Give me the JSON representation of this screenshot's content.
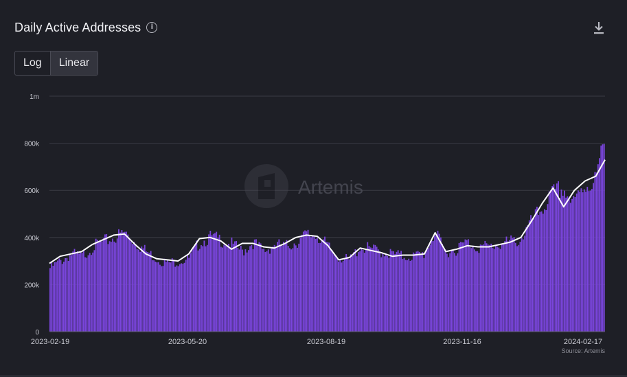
{
  "header": {
    "title": "Daily Active Addresses",
    "info_icon": "info-icon",
    "download_icon": "download-icon"
  },
  "scale_toggle": {
    "options": [
      "Log",
      "Linear"
    ],
    "selected": "Linear"
  },
  "watermark": {
    "text": "Artemis",
    "icon": "artemis-logo-icon"
  },
  "source": "Source: Artemis",
  "colors": {
    "background": "#1e1f26",
    "bar": "#7a45dc",
    "moving_average": "#ffffff",
    "grid": "#3a3b44",
    "axis_text": "#c9cad2"
  },
  "chart_data": {
    "type": "bar",
    "title": "Daily Active Addresses",
    "xlabel": "",
    "ylabel": "",
    "x_range": [
      "2023-02-19",
      "2024-02-17"
    ],
    "x_tick_labels": [
      "2023-02-19",
      "2023-05-20",
      "2023-08-19",
      "2023-11-16",
      "2024-02-17"
    ],
    "y_tick_labels": [
      "0",
      "200k",
      "400k",
      "600k",
      "800k",
      "1m"
    ],
    "ylim": [
      0,
      1000000
    ],
    "grid": true,
    "series": [
      {
        "type": "bar",
        "frequency": "daily",
        "note": "approximate weekly-sampled values read from chart",
        "dates": [
          "2023-02-19",
          "2023-02-26",
          "2023-03-05",
          "2023-03-12",
          "2023-03-19",
          "2023-03-26",
          "2023-04-02",
          "2023-04-09",
          "2023-04-16",
          "2023-04-23",
          "2023-04-30",
          "2023-05-07",
          "2023-05-14",
          "2023-05-21",
          "2023-05-28",
          "2023-06-04",
          "2023-06-11",
          "2023-06-18",
          "2023-06-25",
          "2023-07-02",
          "2023-07-09",
          "2023-07-16",
          "2023-07-23",
          "2023-07-30",
          "2023-08-06",
          "2023-08-13",
          "2023-08-20",
          "2023-08-27",
          "2023-09-03",
          "2023-09-10",
          "2023-09-17",
          "2023-09-24",
          "2023-10-01",
          "2023-10-08",
          "2023-10-15",
          "2023-10-22",
          "2023-10-29",
          "2023-11-05",
          "2023-11-12",
          "2023-11-19",
          "2023-11-26",
          "2023-12-03",
          "2023-12-10",
          "2023-12-17",
          "2023-12-24",
          "2023-12-31",
          "2024-01-07",
          "2024-01-14",
          "2024-01-21",
          "2024-01-28",
          "2024-02-04",
          "2024-02-11",
          "2024-02-17"
        ],
        "values": [
          270000,
          300000,
          330000,
          320000,
          360000,
          380000,
          400000,
          420000,
          380000,
          340000,
          310000,
          290000,
          300000,
          310000,
          380000,
          400000,
          390000,
          370000,
          340000,
          380000,
          340000,
          370000,
          360000,
          380000,
          410000,
          410000,
          360000,
          320000,
          300000,
          360000,
          350000,
          340000,
          330000,
          320000,
          320000,
          330000,
          420000,
          340000,
          350000,
          380000,
          360000,
          360000,
          370000,
          380000,
          390000,
          460000,
          520000,
          580000,
          610000,
          540000,
          620000,
          640000,
          790000
        ]
      },
      {
        "type": "line",
        "note": "moving average",
        "dates": [
          "2023-02-19",
          "2023-02-26",
          "2023-03-05",
          "2023-03-12",
          "2023-03-19",
          "2023-03-26",
          "2023-04-02",
          "2023-04-09",
          "2023-04-16",
          "2023-04-23",
          "2023-04-30",
          "2023-05-07",
          "2023-05-14",
          "2023-05-21",
          "2023-05-28",
          "2023-06-04",
          "2023-06-11",
          "2023-06-18",
          "2023-06-25",
          "2023-07-02",
          "2023-07-09",
          "2023-07-16",
          "2023-07-23",
          "2023-07-30",
          "2023-08-06",
          "2023-08-13",
          "2023-08-20",
          "2023-08-27",
          "2023-09-03",
          "2023-09-10",
          "2023-09-17",
          "2023-09-24",
          "2023-10-01",
          "2023-10-08",
          "2023-10-15",
          "2023-10-22",
          "2023-10-29",
          "2023-11-05",
          "2023-11-12",
          "2023-11-19",
          "2023-11-26",
          "2023-12-03",
          "2023-12-10",
          "2023-12-17",
          "2023-12-24",
          "2023-12-31",
          "2024-01-07",
          "2024-01-14",
          "2024-01-21",
          "2024-01-28",
          "2024-02-04",
          "2024-02-11",
          "2024-02-17"
        ],
        "values": [
          290000,
          320000,
          330000,
          340000,
          370000,
          390000,
          410000,
          415000,
          370000,
          330000,
          310000,
          305000,
          300000,
          330000,
          395000,
          400000,
          385000,
          350000,
          375000,
          375000,
          360000,
          355000,
          375000,
          400000,
          410000,
          405000,
          365000,
          305000,
          315000,
          355000,
          345000,
          335000,
          320000,
          325000,
          325000,
          330000,
          420000,
          340000,
          350000,
          365000,
          360000,
          360000,
          370000,
          380000,
          400000,
          470000,
          545000,
          610000,
          530000,
          600000,
          640000,
          660000,
          730000
        ]
      }
    ]
  }
}
